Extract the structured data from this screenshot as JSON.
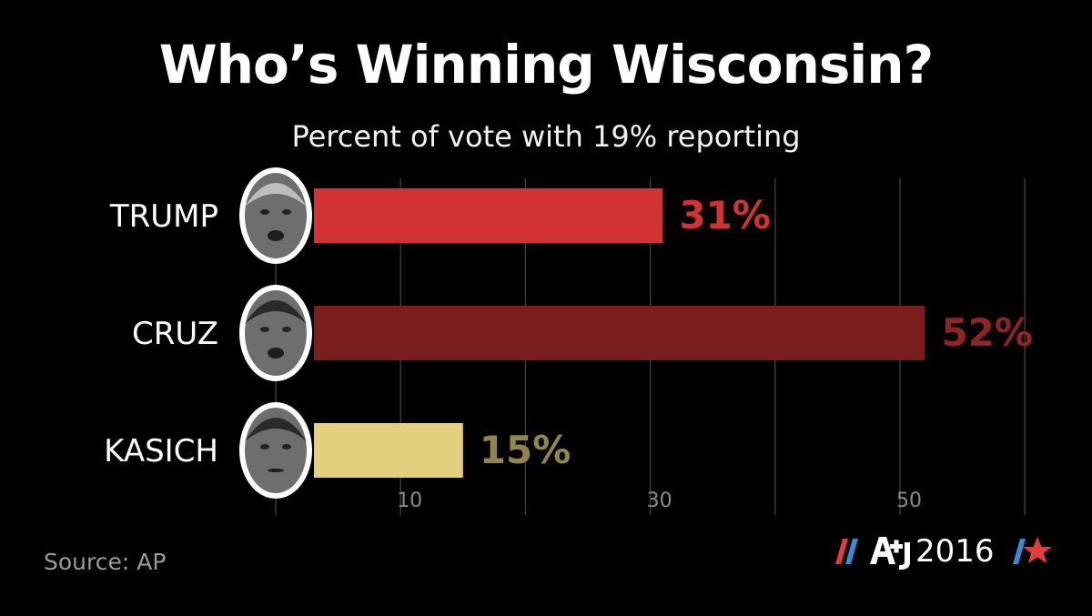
{
  "title": "Who’s Winning Wisconsin?",
  "subtitle": "Percent of vote with 19% reporting",
  "source": "Source: AP",
  "logo": {
    "mark": "AJ+",
    "year": "2016",
    "icons": [
      "red-slash-icon",
      "blue-slash-icon",
      "ajplus-logo-icon",
      "blue-slash-icon",
      "red-star-icon"
    ]
  },
  "chart_data": {
    "type": "bar",
    "orientation": "horizontal",
    "title": "Who’s Winning Wisconsin?",
    "subtitle": "Percent of vote with 19% reporting",
    "categories": [
      "TRUMP",
      "CRUZ",
      "KASICH"
    ],
    "values": [
      31,
      52,
      15
    ],
    "value_labels": [
      "31%",
      "52%",
      "15%"
    ],
    "colors": [
      "#d23232",
      "#7a1d1d",
      "#e3d07e"
    ],
    "label_colors": [
      "#d23232",
      "#8e2424",
      "#8f8649"
    ],
    "x_ticks": [
      10,
      30,
      50
    ],
    "x_tick_labels": [
      "10",
      "30",
      "50"
    ],
    "xlim": [
      0,
      60
    ],
    "grid": true,
    "xlabel": "",
    "ylabel": ""
  }
}
